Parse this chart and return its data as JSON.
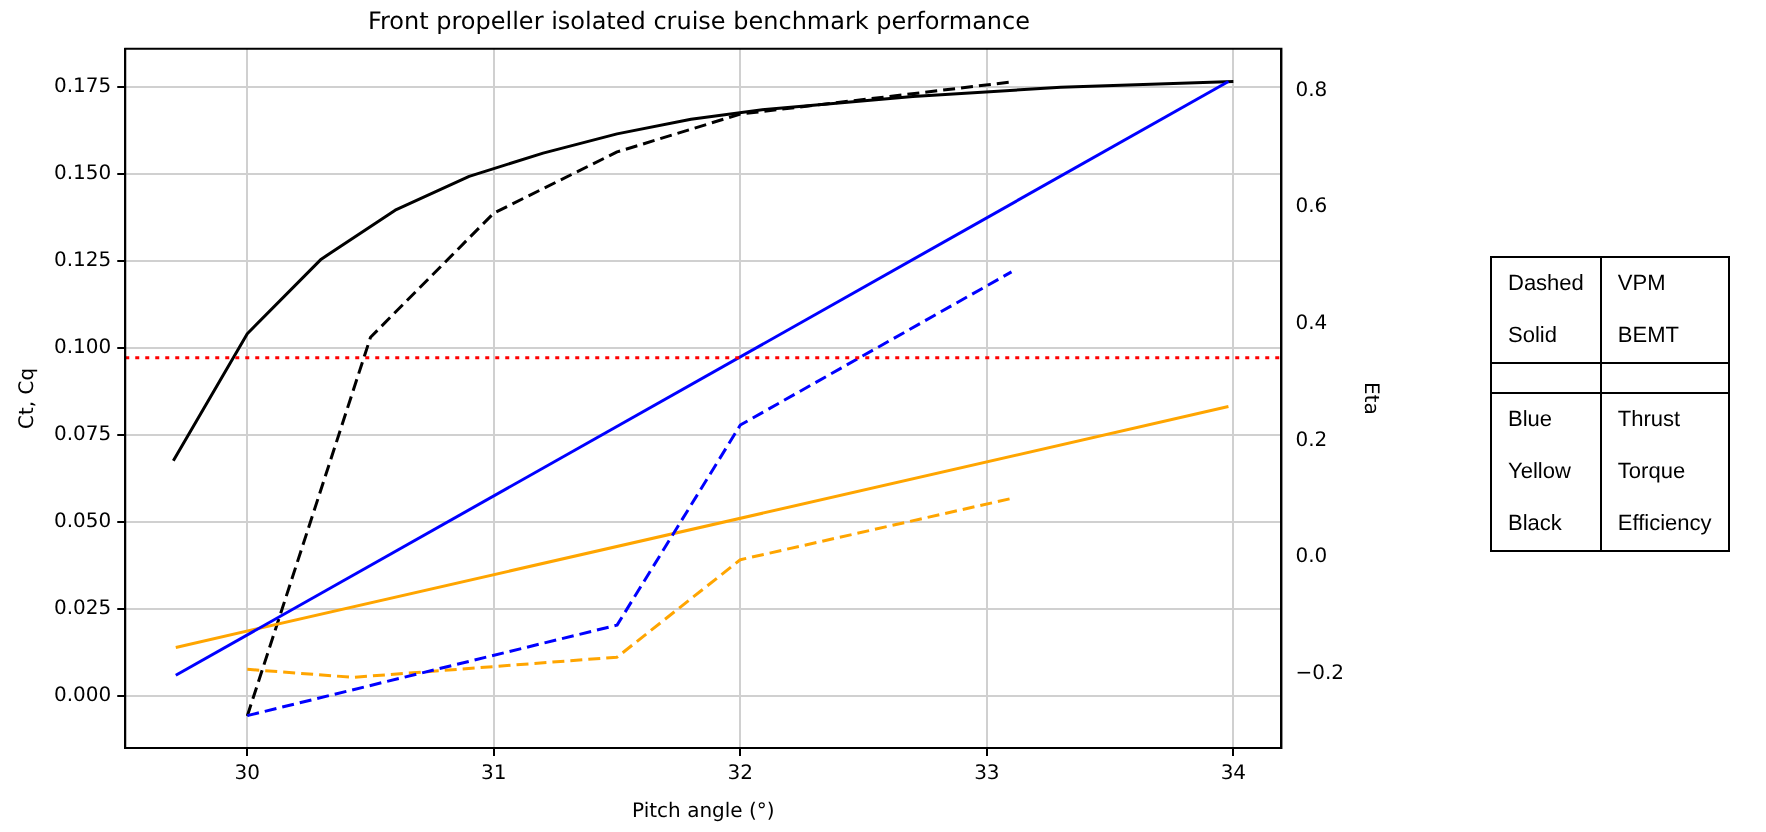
{
  "chart_data": {
    "type": "line",
    "title": "Front propeller isolated cruise benchmark performance",
    "xlabel": "Pitch angle (°)",
    "ylabel": "Ct, Cq",
    "y2label": "Eta",
    "xlim": [
      29.505,
      34.195
    ],
    "xticks": [
      30,
      31,
      32,
      33,
      34
    ],
    "ylim": [
      -0.0149,
      0.186
    ],
    "yticks": [
      {
        "value": 0,
        "label": "0.000"
      },
      {
        "value": 0.025,
        "label": "0.025"
      },
      {
        "value": 0.05,
        "label": "0.050"
      },
      {
        "value": 0.075,
        "label": "0.075"
      },
      {
        "value": 0.1,
        "label": "0.100"
      },
      {
        "value": 0.125,
        "label": "0.125"
      },
      {
        "value": 0.15,
        "label": "0.150"
      },
      {
        "value": 0.175,
        "label": "0.175"
      }
    ],
    "y2lim": [
      -0.328,
      0.872
    ],
    "y2ticks": [
      {
        "value": -0.2,
        "label": "−0.2"
      },
      {
        "value": 0,
        "label": "0.0"
      },
      0.2,
      0.4,
      0.6,
      0.8
    ],
    "grid": true,
    "legend": false,
    "marker": "none",
    "series": [
      {
        "color": "#0000ff",
        "line_style": "solid",
        "x": [
          29.71,
          33.98
        ],
        "values": [
          0.006,
          0.1766
        ]
      },
      {
        "color": "#0000ff",
        "line_style": "dashed",
        "x": [
          30.0,
          31.5,
          32.0,
          33.1
        ],
        "values": [
          -0.0056,
          0.0204,
          0.0779,
          0.1219
        ]
      },
      {
        "color": "#ffa500",
        "line_style": "solid",
        "x": [
          29.71,
          33.98
        ],
        "values": [
          0.014,
          0.0832
        ]
      },
      {
        "color": "#ffa500",
        "line_style": "dashed",
        "x": [
          30.0,
          30.43,
          31.5,
          32.0,
          33.1
        ],
        "values": [
          0.0077,
          0.0054,
          0.0112,
          0.0392,
          0.0568
        ]
      },
      {
        "color": "#000000",
        "line_style": "solid",
        "axis": "y2",
        "x": [
          29.7,
          30.0,
          30.3,
          30.6,
          30.9,
          31.2,
          31.5,
          31.8,
          32.1,
          32.7,
          33.3,
          34.0
        ],
        "values": [
          0.165,
          0.383,
          0.511,
          0.595,
          0.653,
          0.693,
          0.726,
          0.751,
          0.768,
          0.79,
          0.806,
          0.816
        ]
      },
      {
        "color": "#000000",
        "line_style": "dashed",
        "axis": "y2",
        "x": [
          30.0,
          30.5,
          31.0,
          31.5,
          32.0,
          33.1
        ],
        "values": [
          -0.273,
          0.377,
          0.59,
          0.695,
          0.76,
          0.815
        ]
      }
    ],
    "ref_lines": [
      {
        "axis": "y",
        "value": 0.0972,
        "color": "#ff0000",
        "line_style": "dotted"
      }
    ],
    "annotations": [
      "Dashed",
      "VPM",
      "Solid",
      "BEMT",
      "Blue",
      "Thrust",
      "Yellow",
      "Torque",
      "Black",
      "Efficiency"
    ]
  }
}
